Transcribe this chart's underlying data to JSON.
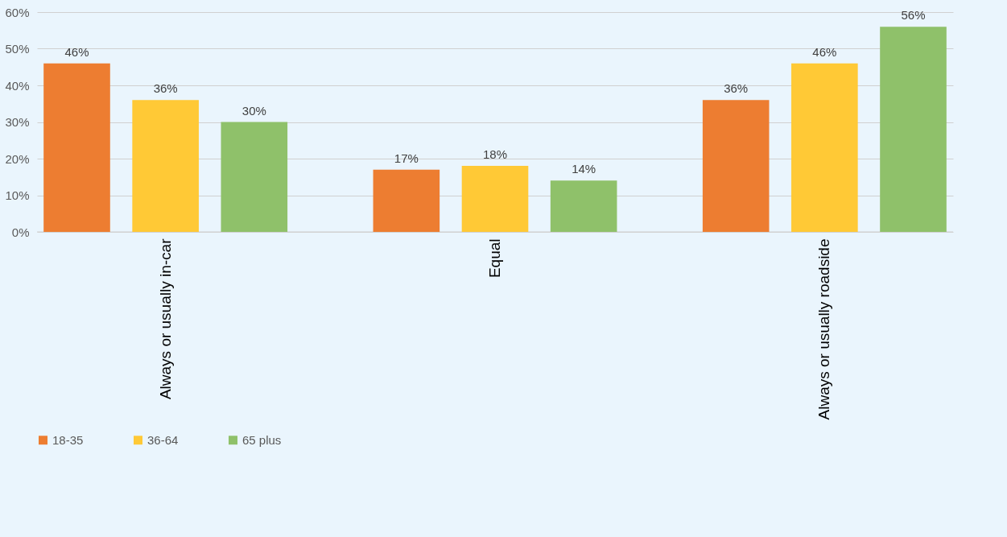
{
  "chart_data": {
    "type": "bar",
    "categories": [
      "Always or usually in-car",
      "Equal",
      "Always or usually roadside"
    ],
    "series": [
      {
        "name": "18-35",
        "color": "#ed7d31",
        "values": [
          46,
          17,
          36
        ],
        "value_labels": [
          "46%",
          "17%",
          "36%"
        ]
      },
      {
        "name": "36-64",
        "color": "#ffc936",
        "values": [
          36,
          18,
          46
        ],
        "value_labels": [
          "36%",
          "18%",
          "46%"
        ]
      },
      {
        "name": "65 plus",
        "color": "#8fc16a",
        "values": [
          30,
          14,
          56
        ],
        "value_labels": [
          "30%",
          "14%",
          "56%"
        ]
      }
    ],
    "ylim": [
      0,
      60
    ],
    "yticks": [
      {
        "value": 0,
        "label": "0%"
      },
      {
        "value": 10,
        "label": "10%"
      },
      {
        "value": 20,
        "label": "20%"
      },
      {
        "value": 30,
        "label": "30%"
      },
      {
        "value": 40,
        "label": "40%"
      },
      {
        "value": 50,
        "label": "50%"
      },
      {
        "value": 60,
        "label": "60%"
      }
    ],
    "grid": "y",
    "legend": "bottom"
  }
}
